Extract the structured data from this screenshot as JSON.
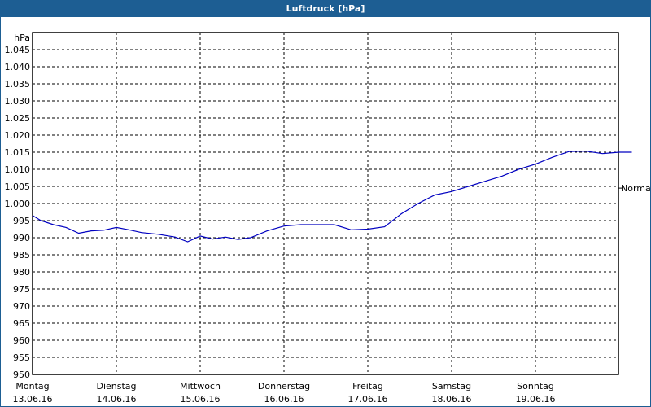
{
  "window": {
    "title": "Luftdruck [hPa]"
  },
  "chart_data": {
    "type": "line",
    "title": "Luftdruck [hPa]",
    "ylabel": "hPa",
    "xlabel": "",
    "ylim": [
      950,
      1050
    ],
    "yticks": [
      "1.045",
      "1.040",
      "1.035",
      "1.030",
      "1.025",
      "1.020",
      "1.015",
      "1.010",
      "1.005",
      "1.000",
      "995",
      "990",
      "985",
      "980",
      "975",
      "970",
      "965",
      "960",
      "955",
      "950"
    ],
    "ytick_values": [
      1045,
      1040,
      1035,
      1030,
      1025,
      1020,
      1015,
      1010,
      1005,
      1000,
      995,
      990,
      985,
      980,
      975,
      970,
      965,
      960,
      955,
      950
    ],
    "categories": [
      {
        "day": "Montag",
        "date": "13.06.16"
      },
      {
        "day": "Dienstag",
        "date": "14.06.16"
      },
      {
        "day": "Mittwoch",
        "date": "15.06.16"
      },
      {
        "day": "Donnerstag",
        "date": "16.06.16"
      },
      {
        "day": "Freitag",
        "date": "17.06.16"
      },
      {
        "day": "Samstag",
        "date": "18.06.16"
      },
      {
        "day": "Sonntag",
        "date": "19.06.16"
      }
    ],
    "reference_line": {
      "label": "Normal",
      "value": 1004.5
    },
    "grid": true,
    "series": [
      {
        "name": "Luftdruck",
        "color": "#0000c0",
        "x_days": [
          0,
          0.1,
          0.25,
          0.4,
          0.55,
          0.7,
          0.85,
          1.0,
          1.15,
          1.3,
          1.5,
          1.7,
          1.85,
          2.0,
          2.15,
          2.3,
          2.45,
          2.6,
          2.8,
          3.0,
          3.2,
          3.4,
          3.6,
          3.8,
          4.0,
          4.2,
          4.4,
          4.6,
          4.8,
          5.0,
          5.2,
          5.4,
          5.6,
          5.8,
          6.0,
          6.2,
          6.4,
          6.6,
          6.8,
          7.0,
          7.15
        ],
        "values": [
          996.5,
          995.0,
          993.8,
          993.0,
          991.3,
          992.0,
          992.2,
          993.0,
          992.3,
          991.5,
          991.0,
          990.2,
          988.8,
          990.5,
          989.6,
          990.2,
          989.5,
          990.0,
          992.0,
          993.4,
          993.8,
          993.8,
          993.8,
          992.3,
          992.5,
          993.2,
          997.0,
          1000.0,
          1002.5,
          1003.5,
          1005.0,
          1006.5,
          1008.0,
          1010.0,
          1011.5,
          1013.5,
          1015.2,
          1015.3,
          1014.6,
          1015.0,
          1015.0
        ]
      }
    ]
  }
}
